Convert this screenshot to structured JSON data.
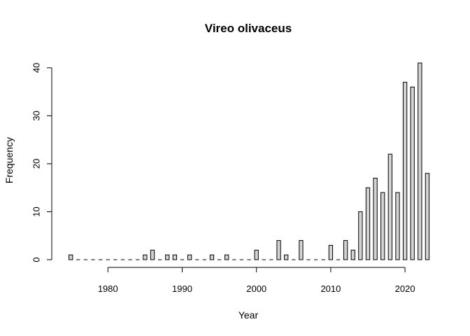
{
  "chart_data": {
    "type": "bar",
    "title": "Vireo olivaceus",
    "xlabel": "Year",
    "ylabel": "Frequency",
    "xlim": [
      1975,
      2023
    ],
    "ylim": [
      0,
      41
    ],
    "x_ticks": [
      1980,
      1990,
      2000,
      2010,
      2020
    ],
    "y_ticks": [
      0,
      10,
      20,
      30,
      40
    ],
    "grid": false,
    "bar_color": "#d3d3d3",
    "x": [
      1975,
      1976,
      1977,
      1978,
      1979,
      1980,
      1981,
      1982,
      1983,
      1984,
      1985,
      1986,
      1987,
      1988,
      1989,
      1990,
      1991,
      1992,
      1993,
      1994,
      1995,
      1996,
      1997,
      1998,
      1999,
      2000,
      2001,
      2002,
      2003,
      2004,
      2005,
      2006,
      2007,
      2008,
      2009,
      2010,
      2011,
      2012,
      2013,
      2014,
      2015,
      2016,
      2017,
      2018,
      2019,
      2020,
      2021,
      2022,
      2023
    ],
    "values": [
      1,
      0,
      0,
      0,
      0,
      0,
      0,
      0,
      0,
      0,
      1,
      2,
      0,
      1,
      1,
      0,
      1,
      0,
      0,
      1,
      0,
      1,
      0,
      0,
      0,
      2,
      0,
      0,
      4,
      1,
      0,
      4,
      0,
      0,
      0,
      3,
      0,
      4,
      2,
      10,
      15,
      17,
      14,
      22,
      14,
      37,
      36,
      41,
      18
    ]
  }
}
